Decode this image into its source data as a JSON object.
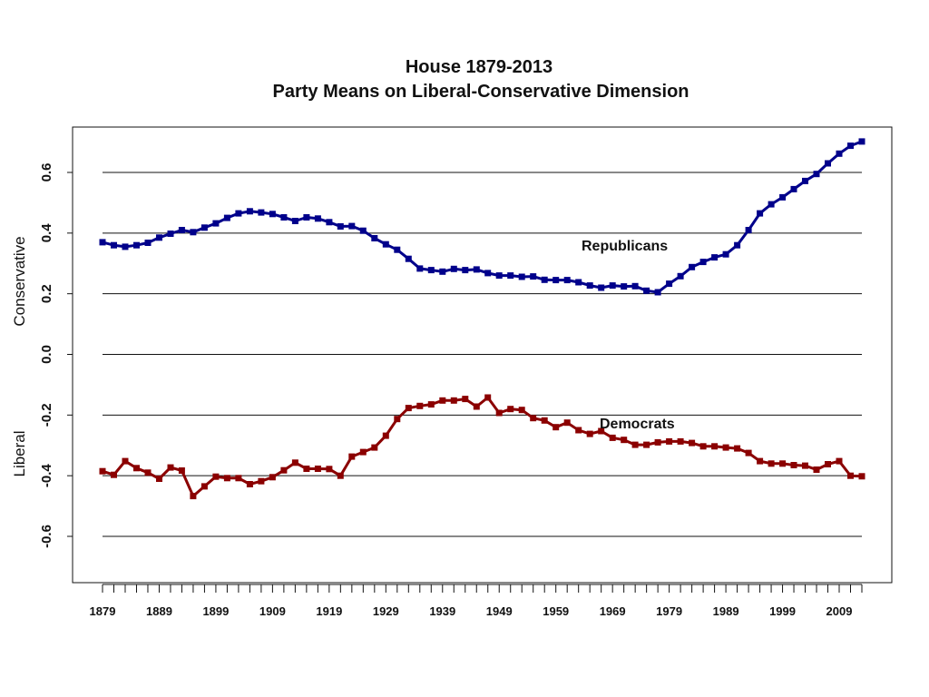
{
  "chart_data": {
    "type": "line",
    "title": "House 1879-2013",
    "subtitle": "Party Means on Liberal-Conservative Dimension",
    "xlabel": "",
    "ylabel_top": "Conservative",
    "ylabel_bottom": "Liberal",
    "ylim": [
      -0.75,
      0.75
    ],
    "xlim": [
      1879,
      2013
    ],
    "grid": true,
    "yticks": [
      0.6,
      0.4,
      0.2,
      0.0,
      -0.2,
      -0.4,
      -0.6
    ],
    "ytick_labels": [
      "0.6",
      "0.4",
      "0.2",
      "0.0",
      "-0.2",
      "-0.4",
      "-0.6"
    ],
    "xticks": [
      1879,
      1889,
      1899,
      1909,
      1919,
      1929,
      1939,
      1949,
      1959,
      1969,
      1979,
      1989,
      1999,
      2009
    ],
    "xtick_labels": [
      "1879",
      "1889",
      "1899",
      "1909",
      "1919",
      "1929",
      "1939",
      "1949",
      "1959",
      "1969",
      "1979",
      "1989",
      "1999",
      "2009"
    ],
    "series": [
      {
        "name": "Republicans",
        "label": "Republicans",
        "color": "#00008B",
        "values": [
          0.37,
          0.36,
          0.355,
          0.36,
          0.368,
          0.385,
          0.398,
          0.41,
          0.403,
          0.418,
          0.432,
          0.45,
          0.465,
          0.472,
          0.468,
          0.463,
          0.452,
          0.44,
          0.452,
          0.448,
          0.436,
          0.422,
          0.423,
          0.408,
          0.383,
          0.363,
          0.345,
          0.315,
          0.283,
          0.278,
          0.273,
          0.282,
          0.278,
          0.28,
          0.268,
          0.26,
          0.26,
          0.256,
          0.257,
          0.246,
          0.245,
          0.245,
          0.238,
          0.227,
          0.22,
          0.227,
          0.224,
          0.225,
          0.21,
          0.205,
          0.233,
          0.258,
          0.288,
          0.305,
          0.32,
          0.33,
          0.36,
          0.41,
          0.465,
          0.495,
          0.518,
          0.545,
          0.572,
          0.595,
          0.63,
          0.662,
          0.688,
          0.702
        ]
      },
      {
        "name": "Democrats",
        "label": "Democrats",
        "color": "#8B0000",
        "values": [
          -0.385,
          -0.397,
          -0.352,
          -0.375,
          -0.39,
          -0.41,
          -0.373,
          -0.383,
          -0.467,
          -0.435,
          -0.403,
          -0.408,
          -0.408,
          -0.428,
          -0.418,
          -0.405,
          -0.382,
          -0.357,
          -0.377,
          -0.377,
          -0.378,
          -0.4,
          -0.337,
          -0.322,
          -0.307,
          -0.268,
          -0.213,
          -0.177,
          -0.17,
          -0.165,
          -0.152,
          -0.152,
          -0.147,
          -0.172,
          -0.142,
          -0.193,
          -0.18,
          -0.183,
          -0.21,
          -0.218,
          -0.24,
          -0.225,
          -0.25,
          -0.262,
          -0.253,
          -0.275,
          -0.282,
          -0.298,
          -0.298,
          -0.29,
          -0.287,
          -0.287,
          -0.292,
          -0.303,
          -0.303,
          -0.307,
          -0.31,
          -0.325,
          -0.352,
          -0.36,
          -0.36,
          -0.365,
          -0.367,
          -0.38,
          -0.362,
          -0.352,
          -0.4,
          -0.402
        ]
      }
    ]
  }
}
